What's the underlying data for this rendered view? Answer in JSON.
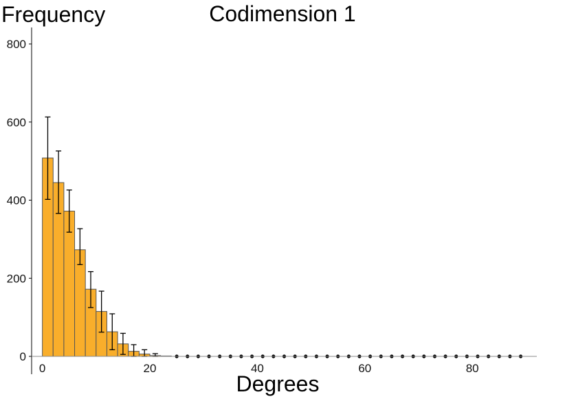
{
  "chart_data": {
    "type": "bar",
    "title": "Codimension 1",
    "xlabel": "Degrees",
    "ylabel": "Frequency",
    "xlim": [
      -2,
      92
    ],
    "ylim": [
      0,
      800
    ],
    "xticks": [
      0,
      20,
      40,
      60,
      80
    ],
    "yticks": [
      0,
      200,
      400,
      600,
      800
    ],
    "bin_width": 2,
    "bar_color": "#f9ae2b",
    "bar_edge_color": "#555555",
    "error_color": "#000000",
    "bins": [
      0,
      2,
      4,
      6,
      8,
      10,
      12,
      14,
      16,
      18,
      20,
      22,
      24,
      26,
      28,
      30,
      32,
      34,
      36,
      38,
      40,
      42,
      44,
      46,
      48,
      50,
      52,
      54,
      56,
      58,
      60,
      62,
      64,
      66,
      68,
      70,
      72,
      74,
      76,
      78,
      80,
      82,
      84,
      86,
      88
    ],
    "values": [
      508,
      445,
      372,
      273,
      172,
      115,
      63,
      32,
      13,
      6,
      2,
      1,
      0,
      0,
      0,
      0,
      0,
      0,
      0,
      0,
      0,
      0,
      0,
      0,
      0,
      0,
      0,
      0,
      0,
      0,
      0,
      0,
      0,
      0,
      0,
      0,
      0,
      0,
      0,
      0,
      0,
      0,
      0,
      0,
      0
    ],
    "error_low": [
      402,
      366,
      318,
      235,
      125,
      62,
      17,
      5,
      0,
      0,
      0,
      0,
      0,
      0,
      0,
      0,
      0,
      0,
      0,
      0,
      0,
      0,
      0,
      0,
      0,
      0,
      0,
      0,
      0,
      0,
      0,
      0,
      0,
      0,
      0,
      0,
      0,
      0,
      0,
      0,
      0,
      0,
      0,
      0,
      0
    ],
    "error_high": [
      613,
      526,
      426,
      327,
      217,
      167,
      109,
      59,
      30,
      17,
      7,
      0,
      0,
      0,
      0,
      0,
      0,
      0,
      0,
      0,
      0,
      0,
      0,
      0,
      0,
      0,
      0,
      0,
      0,
      0,
      0,
      0,
      0,
      0,
      0,
      0,
      0,
      0,
      0,
      0,
      0,
      0,
      0,
      0,
      0
    ]
  }
}
